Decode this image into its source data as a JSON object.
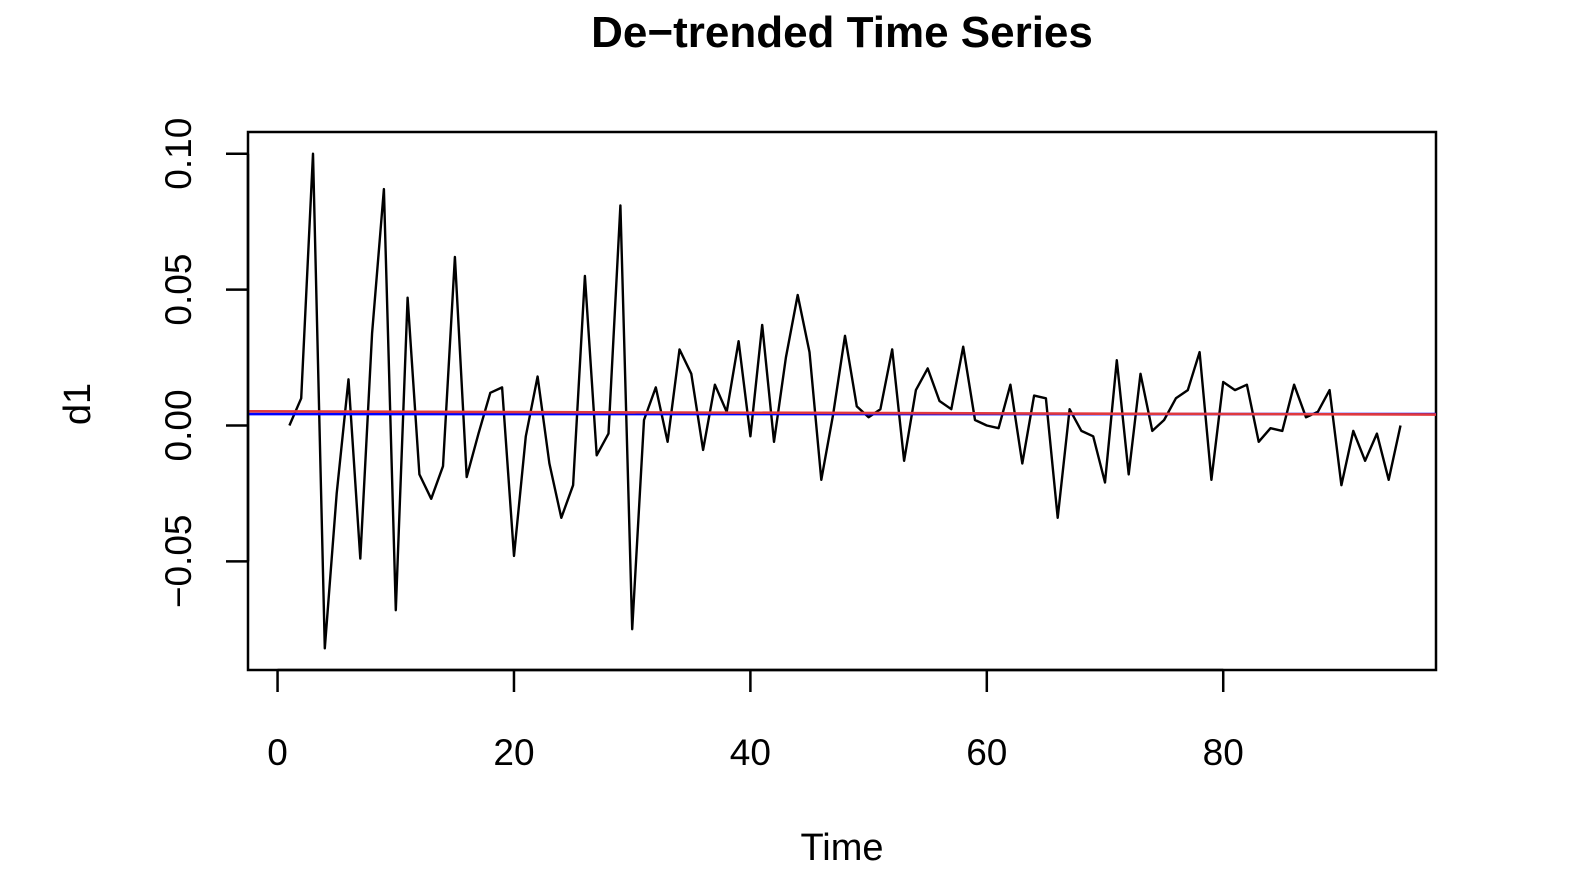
{
  "chart_data": {
    "type": "line",
    "title": "De−trended Time Series",
    "xlabel": "Time",
    "ylabel": "d1",
    "xlim": [
      -2.5,
      98
    ],
    "ylim": [
      -0.09,
      0.108
    ],
    "x_ticks": [
      0,
      20,
      40,
      60,
      80
    ],
    "x_tick_labels": [
      "0",
      "20",
      "40",
      "60",
      "80"
    ],
    "y_ticks": [
      -0.05,
      0.0,
      0.05,
      0.1
    ],
    "y_tick_labels": [
      "−0.05",
      "0.00",
      "0.05",
      "0.10"
    ],
    "grid": false,
    "series": [
      {
        "color": "#000000",
        "x": [
          1,
          2,
          3,
          4,
          5,
          6,
          7,
          8,
          9,
          10,
          11,
          12,
          13,
          14,
          15,
          16,
          17,
          18,
          19,
          20,
          21,
          22,
          23,
          24,
          25,
          26,
          27,
          28,
          29,
          30,
          31,
          32,
          33,
          34,
          35,
          36,
          37,
          38,
          39,
          40,
          41,
          42,
          43,
          44,
          45,
          46,
          47,
          48,
          49,
          50,
          51,
          52,
          53,
          54,
          55,
          56,
          57,
          58,
          59,
          60,
          61,
          62,
          63,
          64,
          65,
          66,
          67,
          68,
          69,
          70,
          71,
          72,
          73,
          74,
          75,
          76,
          77,
          78,
          79,
          80,
          81,
          82,
          83,
          84,
          85,
          86,
          87,
          88,
          89,
          90,
          91,
          92,
          93,
          94,
          95
        ],
        "values": [
          0.0,
          0.01,
          0.1,
          -0.082,
          -0.025,
          0.017,
          -0.049,
          0.034,
          0.087,
          -0.068,
          0.047,
          -0.018,
          -0.027,
          -0.015,
          0.062,
          -0.019,
          -0.003,
          0.012,
          0.014,
          -0.048,
          -0.004,
          0.018,
          -0.014,
          -0.034,
          -0.022,
          0.055,
          -0.011,
          -0.003,
          0.081,
          -0.075,
          0.002,
          0.014,
          -0.006,
          0.028,
          0.019,
          -0.009,
          0.015,
          0.005,
          0.031,
          -0.004,
          0.037,
          -0.006,
          0.025,
          0.048,
          0.027,
          -0.02,
          0.004,
          0.033,
          0.007,
          0.003,
          0.006,
          0.028,
          -0.013,
          0.013,
          0.021,
          0.009,
          0.006,
          0.029,
          0.002,
          0.0,
          -0.001,
          0.015,
          -0.014,
          0.011,
          0.01,
          -0.034,
          0.006,
          -0.002,
          -0.004,
          -0.021,
          0.024,
          -0.018,
          0.019,
          -0.002,
          0.002,
          0.01,
          0.013,
          0.027,
          -0.02,
          0.016,
          0.013,
          0.015,
          -0.006,
          -0.001,
          -0.002,
          0.015,
          0.003,
          0.005,
          0.013,
          -0.022,
          -0.002,
          -0.013,
          -0.003,
          -0.02,
          0.0
        ]
      }
    ],
    "reference_lines": [
      {
        "color": "#0000ff",
        "x": [
          -2.5,
          98
        ],
        "y": [
          0.0042,
          0.0042
        ]
      },
      {
        "color": "#e0393e",
        "x": [
          -2.5,
          98
        ],
        "y": [
          0.0052,
          0.004
        ]
      }
    ]
  }
}
